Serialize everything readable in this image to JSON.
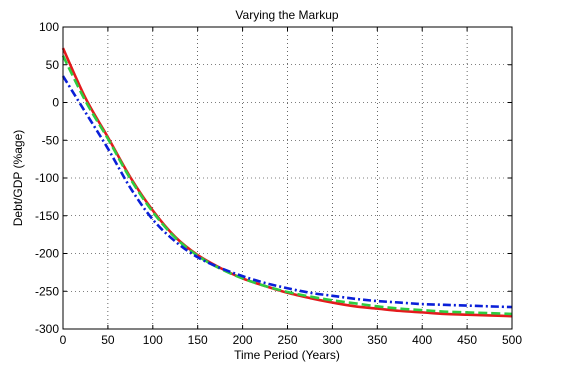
{
  "chart_data": {
    "type": "line",
    "title": "Varying the Markup",
    "xlabel": "Time Period (Years)",
    "ylabel": "Debt/GDP (%age)",
    "xlim": [
      0,
      500
    ],
    "ylim": [
      -300,
      100
    ],
    "xticks": [
      0,
      50,
      100,
      150,
      200,
      250,
      300,
      350,
      400,
      450,
      500
    ],
    "yticks": [
      100,
      50,
      0,
      -50,
      -100,
      -150,
      -200,
      -250,
      -300
    ],
    "grid": true,
    "legend": "none",
    "x": [
      0,
      25,
      50,
      75,
      100,
      125,
      150,
      175,
      200,
      225,
      250,
      275,
      300,
      325,
      350,
      375,
      400,
      425,
      450,
      475,
      500
    ],
    "series": [
      {
        "color": "#e41a1c",
        "style": "solid",
        "values": [
          72,
          6,
          -46,
          -99,
          -143,
          -178,
          -202,
          -219,
          -233,
          -243,
          -252,
          -259,
          -265,
          -270,
          -273,
          -276,
          -278,
          -280,
          -281,
          -282,
          -283
        ]
      },
      {
        "color": "#2ecc40",
        "style": "dashed",
        "values": [
          62,
          2,
          -48,
          -101,
          -145,
          -179,
          -203,
          -220,
          -233,
          -243,
          -251,
          -257,
          -262,
          -266,
          -270,
          -273,
          -275,
          -277,
          -278,
          -279,
          -280
        ]
      },
      {
        "color": "#0a1fd8",
        "style": "dashdot",
        "values": [
          35,
          -13,
          -61,
          -113,
          -155,
          -184,
          -205,
          -219,
          -230,
          -239,
          -246,
          -252,
          -256,
          -260,
          -263,
          -265,
          -267,
          -268,
          -269,
          -270,
          -271
        ]
      }
    ]
  }
}
